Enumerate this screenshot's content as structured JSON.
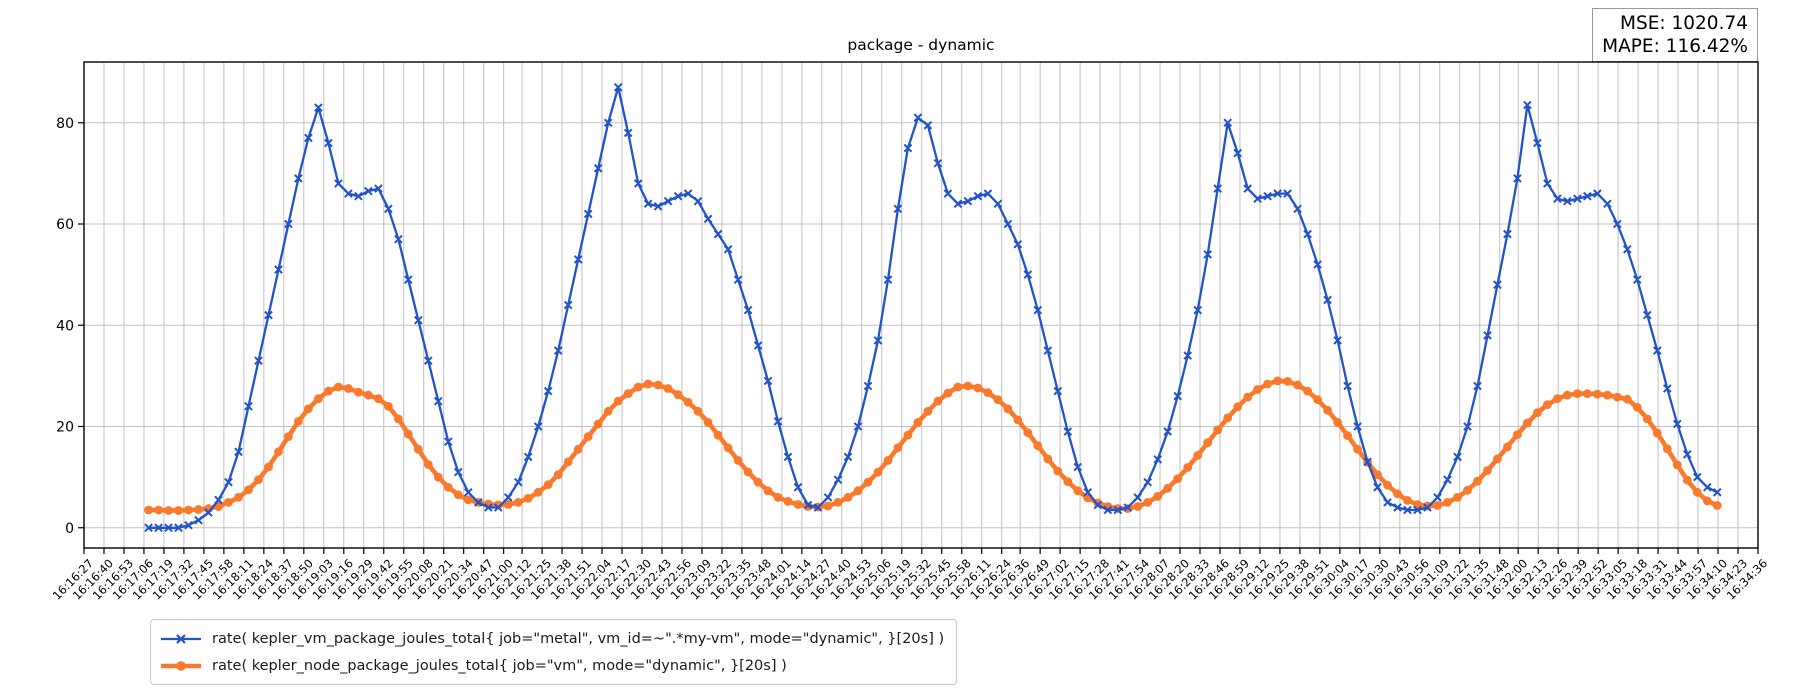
{
  "figure": {
    "stats_box": {
      "mse": "MSE: 1020.74",
      "mape": "MAPE: 116.42%"
    },
    "colors": {
      "grid": "#c0c0c0",
      "spine": "#000000",
      "text": "#000000",
      "legend_border": "#c9c9c9",
      "stats_border": "#9a9a9a",
      "background": "#ffffff"
    }
  },
  "chart_data": {
    "type": "line",
    "title": "package - dynamic",
    "xlabel": "",
    "ylabel": "",
    "grid": true,
    "legend_position": "below-axis-lower-left",
    "y_ticks": [
      0,
      20,
      40,
      60,
      80
    ],
    "ylim": [
      -4,
      92
    ],
    "x_tick_labels": [
      "16:16:27",
      "16:16:40",
      "16:16:53",
      "16:17:06",
      "16:17:19",
      "16:17:32",
      "16:17:45",
      "16:17:58",
      "16:18:11",
      "16:18:24",
      "16:18:37",
      "16:18:50",
      "16:19:03",
      "16:19:16",
      "16:19:29",
      "16:19:42",
      "16:19:55",
      "16:20:08",
      "16:20:21",
      "16:20:34",
      "16:20:47",
      "16:21:00",
      "16:21:12",
      "16:21:25",
      "16:21:38",
      "16:21:51",
      "16:22:04",
      "16:22:17",
      "16:22:30",
      "16:22:43",
      "16:22:56",
      "16:23:09",
      "16:23:22",
      "16:23:35",
      "16:23:48",
      "16:24:01",
      "16:24:14",
      "16:24:27",
      "16:24:40",
      "16:24:53",
      "16:25:06",
      "16:25:19",
      "16:25:32",
      "16:25:45",
      "16:25:58",
      "16:26:11",
      "16:26:24",
      "16:26:36",
      "16:26:49",
      "16:27:02",
      "16:27:15",
      "16:27:28",
      "16:27:41",
      "16:27:54",
      "16:28:07",
      "16:28:20",
      "16:28:33",
      "16:28:46",
      "16:28:59",
      "16:29:12",
      "16:29:25",
      "16:29:38",
      "16:29:51",
      "16:30:04",
      "16:30:17",
      "16:30:30",
      "16:30:43",
      "16:30:56",
      "16:31:09",
      "16:31:22",
      "16:31:35",
      "16:31:48",
      "16:32:00",
      "16:32:13",
      "16:32:26",
      "16:32:39",
      "16:32:52",
      "16:33:05",
      "16:33:18",
      "16:33:31",
      "16:33:44",
      "16:33:57",
      "16:34:10",
      "16:34:23",
      "16:34:36"
    ],
    "series": [
      {
        "name": "vm-package-metal",
        "label": "rate( kepler_vm_package_joules_total{ job=\"metal\", vm_id=~\".*my-vm\", mode=\"dynamic\", }[20s] )",
        "color": "#2253c9",
        "marker": "x",
        "line_width": 2.3,
        "t0": 42,
        "dt": 6.5,
        "values": [
          0,
          0,
          0,
          0,
          0.5,
          1.5,
          3,
          5.5,
          9,
          15,
          24,
          33,
          42,
          51,
          60,
          69,
          77,
          83,
          76,
          68,
          66,
          65.5,
          66.5,
          67,
          63,
          57,
          49,
          41,
          33,
          25,
          17,
          11,
          7,
          5,
          4,
          4,
          6,
          9,
          14,
          20,
          27,
          35,
          44,
          53,
          62,
          71,
          80,
          87,
          78,
          68,
          64,
          63.5,
          64.5,
          65.5,
          66,
          64.5,
          61,
          58,
          55,
          49,
          43,
          36,
          29,
          21,
          14,
          8,
          4.5,
          4,
          6,
          9.5,
          14,
          20,
          28,
          37,
          49,
          63,
          75,
          81,
          79.5,
          72,
          66,
          64,
          64.5,
          65.5,
          66,
          64,
          60,
          56,
          50,
          43,
          35,
          27,
          19,
          12,
          7,
          4.5,
          3.5,
          3.5,
          4,
          6,
          9,
          13.5,
          19,
          26,
          34,
          43,
          54,
          67,
          80,
          74,
          67,
          65,
          65.5,
          66,
          66,
          63,
          58,
          52,
          45,
          37,
          28,
          20,
          13,
          8,
          5,
          4,
          3.5,
          3.5,
          4,
          6,
          9.5,
          14,
          20,
          28,
          38,
          48,
          58,
          69,
          83.5,
          76,
          68,
          65,
          64.5,
          65,
          65.5,
          66,
          64,
          60,
          55,
          49,
          42,
          35,
          27.5,
          20.5,
          14.5,
          10,
          8,
          7
        ]
      },
      {
        "name": "node-package-vm",
        "label": "rate( kepler_node_package_joules_total{ job=\"vm\", mode=\"dynamic\", }[20s] )",
        "color": "#fa7a2d",
        "marker": "o",
        "line_width": 4.6,
        "t0": 42,
        "dt": 6.5,
        "values": [
          3.5,
          3.5,
          3.4,
          3.4,
          3.5,
          3.6,
          3.8,
          4.2,
          5,
          6,
          7.5,
          9.5,
          12,
          15,
          18,
          21,
          23.5,
          25.5,
          27,
          27.8,
          27.5,
          26.8,
          26.2,
          25.5,
          24,
          21.5,
          18.5,
          15.5,
          12.5,
          10,
          8,
          6.5,
          5.5,
          5,
          4.7,
          4.5,
          4.6,
          5,
          5.8,
          7,
          8.5,
          10.5,
          13,
          15.5,
          18,
          20.5,
          23,
          25,
          26.5,
          27.8,
          28.4,
          28.2,
          27.5,
          26.3,
          24.8,
          23,
          20.8,
          18.3,
          15.8,
          13.3,
          11,
          9,
          7.3,
          6,
          5.2,
          4.6,
          4.2,
          4.1,
          4.3,
          5,
          6,
          7.3,
          9,
          11,
          13.3,
          15.8,
          18.3,
          20.8,
          23,
          25,
          26.6,
          27.8,
          28,
          27.6,
          26.7,
          25.3,
          23.5,
          21.3,
          18.8,
          16.2,
          13.6,
          11.2,
          9.1,
          7.3,
          5.9,
          4.9,
          4.2,
          3.8,
          3.8,
          4.2,
          5,
          6.2,
          7.8,
          9.7,
          11.9,
          14.3,
          16.8,
          19.3,
          21.7,
          23.9,
          25.8,
          27.3,
          28.4,
          29,
          28.9,
          28.2,
          27,
          25.3,
          23.2,
          20.8,
          18.2,
          15.5,
          12.9,
          10.5,
          8.4,
          6.7,
          5.4,
          4.6,
          4.3,
          4.4,
          5,
          6,
          7.4,
          9.2,
          11.3,
          13.6,
          16,
          18.4,
          20.7,
          22.7,
          24.3,
          25.5,
          26.2,
          26.5,
          26.5,
          26.4,
          26.2,
          25.8,
          25.4,
          23.8,
          21.5,
          18.7,
          15.6,
          12.4,
          9.4,
          7,
          5.3,
          4.4
        ]
      }
    ]
  }
}
